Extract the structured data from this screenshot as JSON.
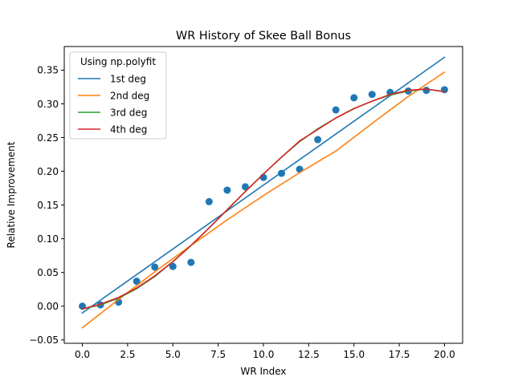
{
  "chart_data": {
    "type": "scatter",
    "title": "WR History of Skee Ball Bonus",
    "xlabel": "WR Index",
    "ylabel": "Relative Improvement",
    "xlim": [
      -1.0,
      21.0
    ],
    "ylim": [
      -0.055,
      0.385
    ],
    "grid": false,
    "legend": {
      "title": "Using np.polyfit",
      "placement": "top-left"
    },
    "x_ticks": [
      {
        "value": 0.0,
        "label": "0.0"
      },
      {
        "value": 2.5,
        "label": "2.5"
      },
      {
        "value": 5.0,
        "label": "5.0"
      },
      {
        "value": 7.5,
        "label": "7.5"
      },
      {
        "value": 10.0,
        "label": "10.0"
      },
      {
        "value": 12.5,
        "label": "12.5"
      },
      {
        "value": 15.0,
        "label": "15.0"
      },
      {
        "value": 17.5,
        "label": "17.5"
      },
      {
        "value": 20.0,
        "label": "20.0"
      }
    ],
    "y_ticks": [
      {
        "value": -0.05,
        "label": "−0.05"
      },
      {
        "value": 0.0,
        "label": "0.00"
      },
      {
        "value": 0.05,
        "label": "0.05"
      },
      {
        "value": 0.1,
        "label": "0.10"
      },
      {
        "value": 0.15,
        "label": "0.15"
      },
      {
        "value": 0.2,
        "label": "0.20"
      },
      {
        "value": 0.25,
        "label": "0.25"
      },
      {
        "value": 0.3,
        "label": "0.30"
      },
      {
        "value": 0.35,
        "label": "0.35"
      }
    ],
    "points": {
      "color": "#1f77b4",
      "x": [
        0,
        1,
        2,
        3,
        4,
        5,
        6,
        7,
        8,
        9,
        10,
        11,
        12,
        13,
        14,
        15,
        16,
        17,
        18,
        19,
        20
      ],
      "y": [
        0.0,
        0.002,
        0.006,
        0.037,
        0.058,
        0.059,
        0.065,
        0.155,
        0.172,
        0.177,
        0.191,
        0.197,
        0.203,
        0.247,
        0.291,
        0.309,
        0.314,
        0.317,
        0.319,
        0.32,
        0.321
      ]
    },
    "series": [
      {
        "name": "1st deg",
        "color": "#1f77b4",
        "x": [
          0,
          20
        ],
        "y": [
          -0.01,
          0.369
        ]
      },
      {
        "name": "2nd deg",
        "color": "#ff7f0e",
        "x": [
          0,
          2,
          4,
          6,
          8,
          10,
          12,
          14,
          16,
          18,
          20
        ],
        "y": [
          -0.032,
          0.01,
          0.051,
          0.09,
          0.128,
          0.164,
          0.198,
          0.23,
          0.271,
          0.311,
          0.347
        ]
      },
      {
        "name": "3rd deg",
        "color": "#2ca02c",
        "x": [
          0,
          1,
          2,
          3,
          4,
          5,
          6,
          7,
          8,
          9,
          10,
          11,
          12,
          13,
          14,
          15,
          16,
          17,
          18,
          19,
          20
        ],
        "y": [
          -0.004,
          0.002,
          0.012,
          0.026,
          0.044,
          0.066,
          0.09,
          0.116,
          0.143,
          0.17,
          0.196,
          0.221,
          0.244,
          0.263,
          0.279,
          0.293,
          0.304,
          0.313,
          0.319,
          0.322,
          0.318
        ]
      },
      {
        "name": "4th deg",
        "color": "#d62728",
        "x": [
          0,
          1,
          2,
          3,
          4,
          5,
          6,
          7,
          8,
          9,
          10,
          11,
          12,
          13,
          14,
          15,
          16,
          17,
          18,
          19,
          20
        ],
        "y": [
          -0.004,
          0.003,
          0.013,
          0.027,
          0.045,
          0.066,
          0.09,
          0.116,
          0.143,
          0.17,
          0.196,
          0.221,
          0.245,
          0.262,
          0.279,
          0.293,
          0.304,
          0.314,
          0.32,
          0.322,
          0.318
        ]
      }
    ]
  }
}
